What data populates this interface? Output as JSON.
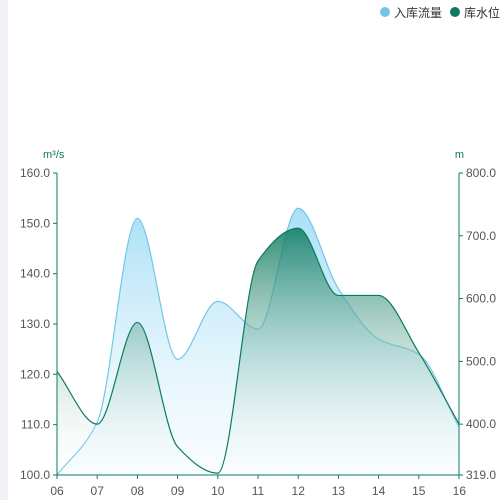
{
  "legend": {
    "items": [
      {
        "label": "入库流量",
        "color": "#73c6e8"
      },
      {
        "label": "库水位",
        "color": "#0e7a5f"
      }
    ]
  },
  "chart_data": {
    "type": "area",
    "x": [
      "06",
      "07",
      "08",
      "09",
      "10",
      "11",
      "12",
      "13",
      "14",
      "15",
      "16"
    ],
    "series": [
      {
        "name": "入库流量",
        "axis": "left",
        "color": "#73c6e8",
        "values": [
          100,
          110.5,
          151,
          123,
          134.5,
          129,
          153,
          137,
          127,
          124,
          109.5
        ]
      },
      {
        "name": "库水位",
        "axis": "right",
        "color": "#0e7a5f",
        "values": [
          484,
          400,
          562,
          364,
          322,
          660,
          712,
          605,
          605,
          514,
          400
        ]
      }
    ],
    "y_left": {
      "unit": "m³/s",
      "min": 100,
      "max": 160,
      "ticks": [
        "100.0",
        "110.0",
        "120.0",
        "130.0",
        "140.0",
        "150.0",
        "160.0"
      ]
    },
    "y_right": {
      "unit": "m",
      "min": 319,
      "max": 800,
      "ticks": [
        "319.0",
        "400.0",
        "500.0",
        "600.0",
        "700.0",
        "800.0"
      ]
    },
    "legend_position": "top-right",
    "grid": false
  }
}
